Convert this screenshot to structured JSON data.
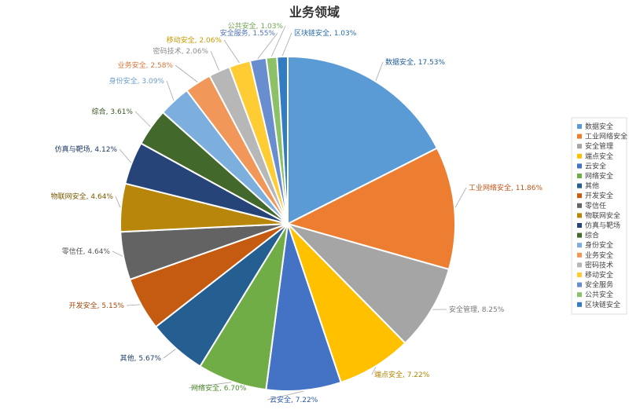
{
  "chart_data": {
    "type": "pie",
    "title": "业务领域",
    "legend_position": "right",
    "slices": [
      {
        "name": "数据安全",
        "value": 17.53,
        "label": "数据安全, 17.53%",
        "color": "#5b9bd5"
      },
      {
        "name": "工业网络安全",
        "value": 11.86,
        "label": "工业网络安全, 11.86%",
        "color": "#ed7d31"
      },
      {
        "name": "安全管理",
        "value": 8.25,
        "label": "安全管理, 8.25%",
        "color": "#a5a5a5"
      },
      {
        "name": "端点安全",
        "value": 7.22,
        "label": "端点安全, 7.22%",
        "color": "#ffc000"
      },
      {
        "name": "云安全",
        "value": 7.22,
        "label": "云安全, 7.22%",
        "color": "#4472c4"
      },
      {
        "name": "网络安全",
        "value": 6.7,
        "label": "网络安全, 6.70%",
        "color": "#70ad47"
      },
      {
        "name": "其他",
        "value": 5.67,
        "label": "其他, 5.67%",
        "color": "#255e91"
      },
      {
        "name": "开发安全",
        "value": 5.15,
        "label": "开发安全, 5.15%",
        "color": "#c55a11"
      },
      {
        "name": "零信任",
        "value": 4.64,
        "label": "零信任, 4.64%",
        "color": "#636363"
      },
      {
        "name": "物联网安全",
        "value": 4.64,
        "label": "物联网安全, 4.64%",
        "color": "#b8860b"
      },
      {
        "name": "仿真与靶场",
        "value": 4.12,
        "label": "仿真与靶场, 4.12%",
        "color": "#264478"
      },
      {
        "name": "综合",
        "value": 3.61,
        "label": "综合, 3.61%",
        "color": "#43682b"
      },
      {
        "name": "身份安全",
        "value": 3.09,
        "label": "身份安全, 3.09%",
        "color": "#7cafdd"
      },
      {
        "name": "业务安全",
        "value": 2.58,
        "label": "业务安全, 2.58%",
        "color": "#f1975a"
      },
      {
        "name": "密码技术",
        "value": 2.06,
        "label": "密码技术, 2.06%",
        "color": "#b7b7b7"
      },
      {
        "name": "移动安全",
        "value": 2.06,
        "label": "移动安全, 2.06%",
        "color": "#ffcd33"
      },
      {
        "name": "安全服务",
        "value": 1.55,
        "label": "安全服务, 1.55%",
        "color": "#698ed0"
      },
      {
        "name": "公共安全",
        "value": 1.03,
        "label": "公共安全, 1.03%",
        "color": "#8cc168"
      },
      {
        "name": "区块链安全",
        "value": 1.03,
        "label": "区块链安全, 1.03%",
        "color": "#327dc2"
      }
    ]
  }
}
